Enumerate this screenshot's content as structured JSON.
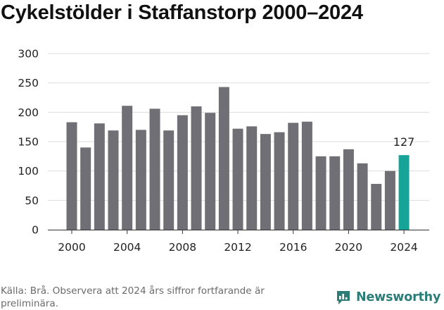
{
  "title": "Cykelstölder i Staffanstorp 2000–2024",
  "source": "Källa: Brå. Observera att 2024 års siffror fortfarande är preliminära.",
  "brand": {
    "name": "Newsworthy",
    "icon": "newsworthy-logo-icon",
    "color": "#2c7d78"
  },
  "chart_data": {
    "type": "bar",
    "title": "Cykelstölder i Staffanstorp 2000–2024",
    "xlabel": "",
    "ylabel": "",
    "x": [
      2000,
      2001,
      2002,
      2003,
      2004,
      2005,
      2006,
      2007,
      2008,
      2009,
      2010,
      2011,
      2012,
      2013,
      2014,
      2015,
      2016,
      2017,
      2018,
      2019,
      2020,
      2021,
      2022,
      2023,
      2024
    ],
    "values": [
      183,
      140,
      181,
      169,
      211,
      170,
      206,
      169,
      195,
      210,
      199,
      243,
      172,
      176,
      163,
      166,
      182,
      184,
      125,
      125,
      137,
      113,
      78,
      100,
      127
    ],
    "ylim": [
      0,
      300
    ],
    "yticks": [
      0,
      50,
      100,
      150,
      200,
      250,
      300
    ],
    "xticks": [
      2000,
      2004,
      2008,
      2012,
      2016,
      2020,
      2024
    ],
    "highlight": {
      "x": 2024,
      "label": "127"
    },
    "colors": {
      "bar": "#706f75",
      "highlight": "#16a398",
      "grid": "#dddddd"
    },
    "grid": true,
    "legend": "none"
  }
}
